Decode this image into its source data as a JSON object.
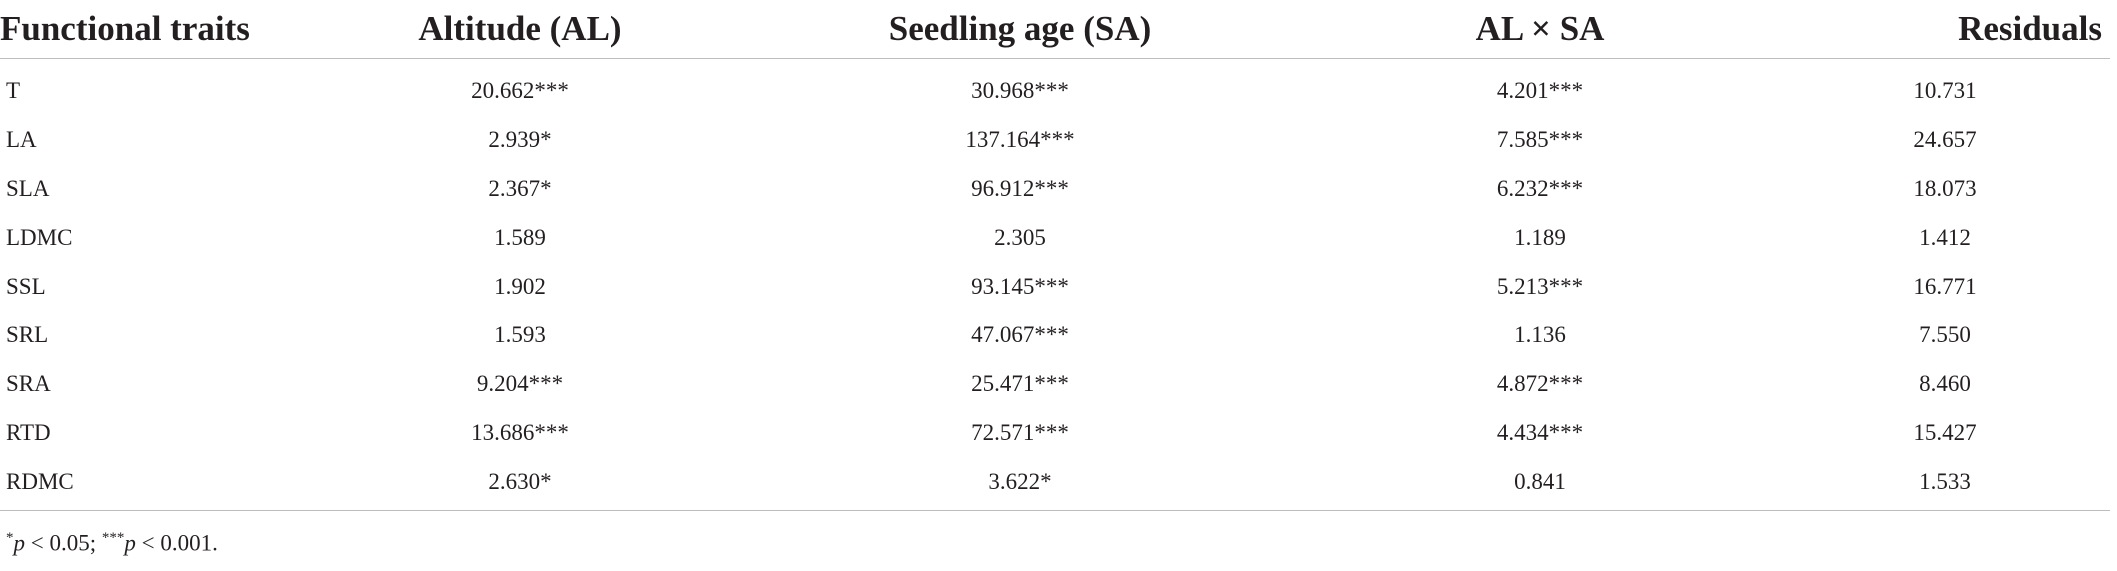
{
  "table": {
    "headers": [
      "Functional traits",
      "Altitude (AL)",
      "Seedling age (SA)",
      "AL × SA",
      "Residuals"
    ],
    "rows": [
      [
        "T",
        "20.662***",
        "30.968***",
        "4.201***",
        "10.731"
      ],
      [
        "LA",
        "2.939*",
        "137.164***",
        "7.585***",
        "24.657"
      ],
      [
        "SLA",
        "2.367*",
        "96.912***",
        "6.232***",
        "18.073"
      ],
      [
        "LDMC",
        "1.589",
        "2.305",
        "1.189",
        "1.412"
      ],
      [
        "SSL",
        "1.902",
        "93.145***",
        "5.213***",
        "16.771"
      ],
      [
        "SRL",
        "1.593",
        "47.067***",
        "1.136",
        "7.550"
      ],
      [
        "SRA",
        "9.204***",
        "25.471***",
        "4.872***",
        "8.460"
      ],
      [
        "RTD",
        "13.686***",
        "72.571***",
        "4.434***",
        "15.427"
      ],
      [
        "RDMC",
        "2.630*",
        "3.622*",
        "0.841",
        "1.533"
      ]
    ]
  },
  "footnote": {
    "sig1_mark": "*",
    "sig1_var": "p",
    "sig1_text": " < 0.05; ",
    "sig2_mark": "***",
    "sig2_var": "p",
    "sig2_text": " < 0.001."
  }
}
